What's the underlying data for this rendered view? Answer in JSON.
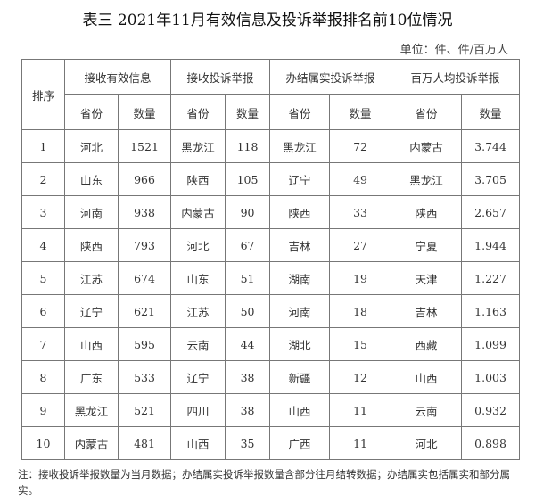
{
  "title": "表三 2021年11月有效信息及投诉举报排名前10位情况",
  "unit": "单位：件、件/百万人",
  "headers": {
    "rank": "排序",
    "groups": [
      "接收有效信息",
      "接收投诉举报",
      "办结属实投诉举报",
      "百万人均投诉举报"
    ],
    "province": "省份",
    "count": "数量"
  },
  "rows": [
    [
      "1",
      "河北",
      "1521",
      "黑龙江",
      "118",
      "黑龙江",
      "72",
      "内蒙古",
      "3.744"
    ],
    [
      "2",
      "山东",
      "966",
      "陕西",
      "105",
      "辽宁",
      "49",
      "黑龙江",
      "3.705"
    ],
    [
      "3",
      "河南",
      "938",
      "内蒙古",
      "90",
      "陕西",
      "33",
      "陕西",
      "2.657"
    ],
    [
      "4",
      "陕西",
      "793",
      "河北",
      "67",
      "吉林",
      "27",
      "宁夏",
      "1.944"
    ],
    [
      "5",
      "江苏",
      "674",
      "山东",
      "51",
      "湖南",
      "19",
      "天津",
      "1.227"
    ],
    [
      "6",
      "辽宁",
      "621",
      "江苏",
      "50",
      "河南",
      "18",
      "吉林",
      "1.163"
    ],
    [
      "7",
      "山西",
      "595",
      "云南",
      "44",
      "湖北",
      "15",
      "西藏",
      "1.099"
    ],
    [
      "8",
      "广东",
      "533",
      "辽宁",
      "38",
      "新疆",
      "12",
      "山西",
      "1.003"
    ],
    [
      "9",
      "黑龙江",
      "521",
      "四川",
      "38",
      "山西",
      "11",
      "云南",
      "0.932"
    ],
    [
      "10",
      "内蒙古",
      "481",
      "山西",
      "35",
      "广西",
      "11",
      "河北",
      "0.898"
    ]
  ],
  "note": "注：接收投诉举报数量为当月数据；办结属实投诉举报数量含部分往月结转数据；办结属实包括属实和部分属实。"
}
